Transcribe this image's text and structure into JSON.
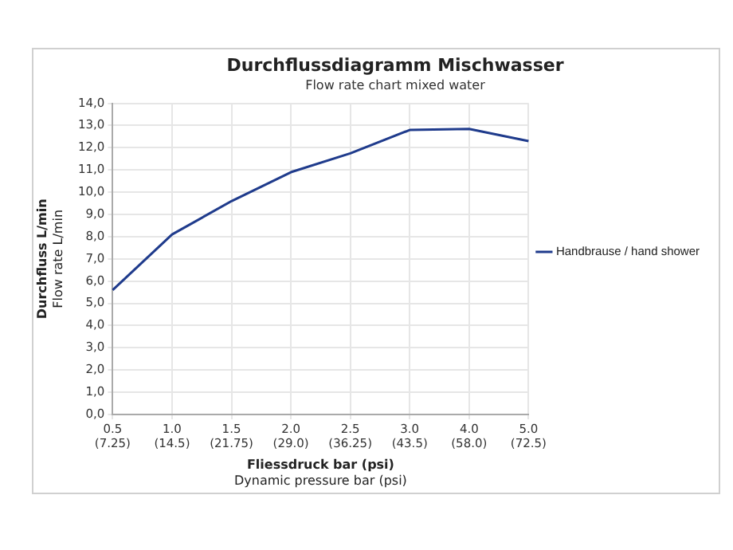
{
  "chart_data": {
    "type": "line",
    "title": "Durchflussdiagramm Mischwasser",
    "subtitle": "Flow rate chart mixed water",
    "xlabel": "Fliessdruck bar (psi)\nDynamic pressure bar (psi)",
    "ylabel": "Durchfluss L/min\nFlow rate L/min",
    "categories": [
      "0.5\n(7.25)",
      "1.0\n(14.5)",
      "1.5\n(21.75)",
      "2.0\n(29.0)",
      "2.5\n(36.25)",
      "3.0\n(43.5)",
      "4.0\n(58.0)",
      "5.0\n(72.5)"
    ],
    "series": [
      {
        "name": "Handbrause / hand shower",
        "color": "#1f3b8c",
        "values": [
          5.6,
          8.1,
          9.6,
          10.9,
          11.75,
          12.8,
          12.85,
          12.3
        ]
      }
    ],
    "ylim": [
      0,
      14
    ],
    "yticks": [
      {
        "value": 0,
        "label": "0,0"
      },
      {
        "value": 1,
        "label": "1,0"
      },
      {
        "value": 2,
        "label": "2,0"
      },
      {
        "value": 3,
        "label": "3,0"
      },
      {
        "value": 4,
        "label": "4,0"
      },
      {
        "value": 5,
        "label": "5,0"
      },
      {
        "value": 6,
        "label": "6,0"
      },
      {
        "value": 7,
        "label": "7,0"
      },
      {
        "value": 8,
        "label": "8,0"
      },
      {
        "value": 9,
        "label": "9,0"
      },
      {
        "value": 10,
        "label": "10,0"
      },
      {
        "value": 11,
        "label": "11,0"
      },
      {
        "value": 12,
        "label": "12,0"
      },
      {
        "value": 13,
        "label": "13,0"
      },
      {
        "value": 14,
        "label": "14,0"
      }
    ],
    "grid": true,
    "legend": "right",
    "marker": "none",
    "line_style": "solid"
  }
}
